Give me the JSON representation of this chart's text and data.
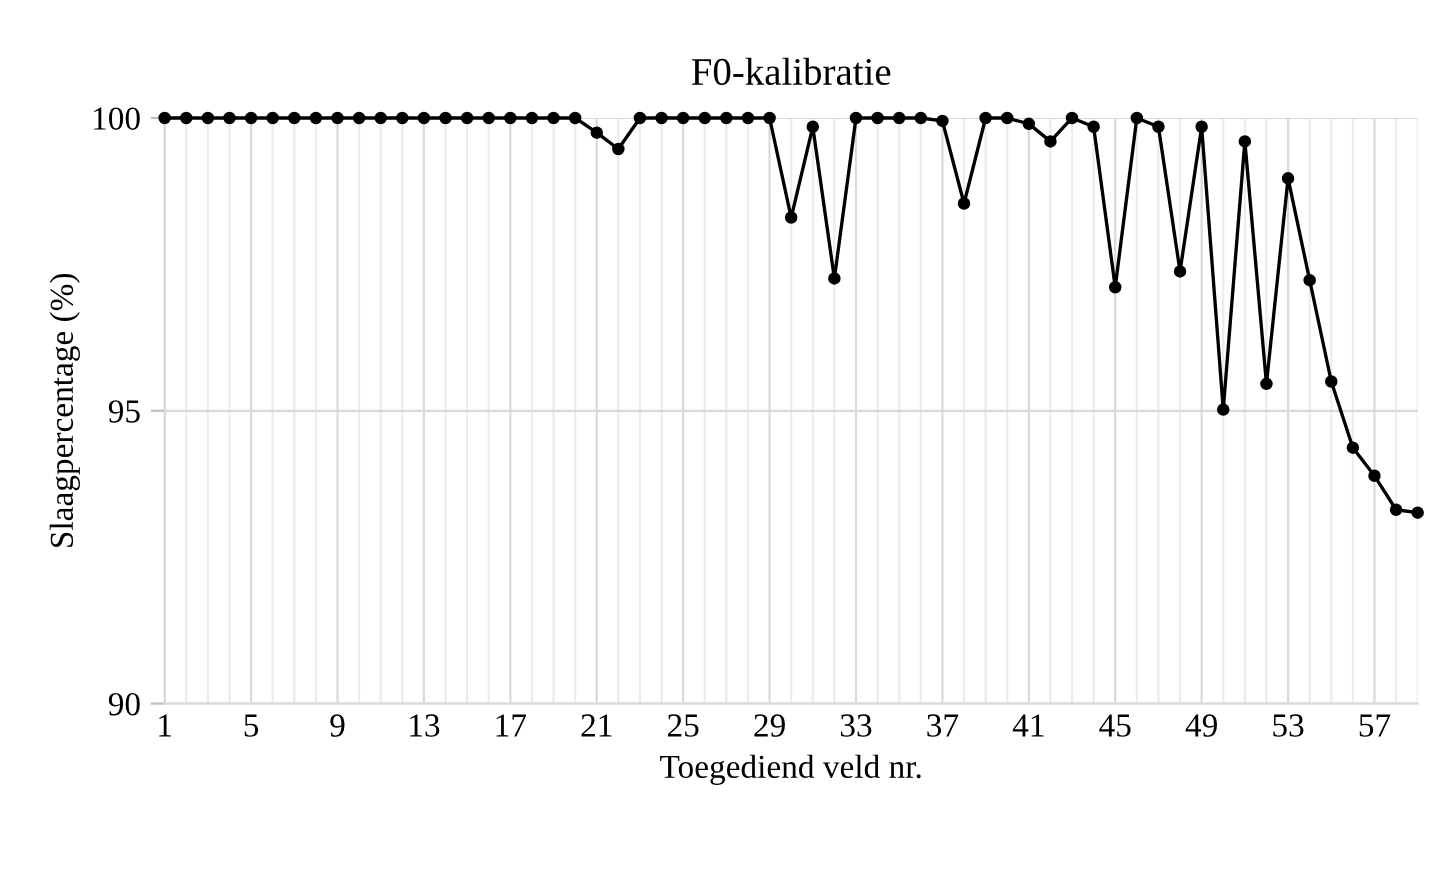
{
  "chart_data": {
    "type": "line",
    "title": "F0-kalibratie",
    "xlabel": "Toegediend veld nr.",
    "ylabel": "Slaagpercentage (%)",
    "categories": [
      "1",
      null,
      null,
      null,
      "5",
      null,
      null,
      null,
      "9",
      null,
      null,
      null,
      "13",
      null,
      null,
      null,
      "17",
      null,
      null,
      null,
      "21",
      null,
      null,
      null,
      "25",
      null,
      null,
      null,
      "29",
      null,
      null,
      null,
      "33",
      null,
      null,
      null,
      "37",
      null,
      null,
      null,
      "41",
      null,
      null,
      null,
      "45",
      null,
      null,
      null,
      "49",
      null,
      null,
      null,
      "53",
      null,
      null,
      null,
      "57",
      null,
      null
    ],
    "series": [
      {
        "color": "#000000",
        "values": [
          100,
          100,
          100,
          100,
          100,
          100,
          100,
          100,
          100,
          100,
          100,
          100,
          100,
          100,
          100,
          100,
          100,
          100,
          100,
          100,
          99.75,
          99.47,
          100,
          100,
          100,
          100,
          100,
          100,
          100,
          98.3,
          99.85,
          97.26,
          100,
          100,
          100,
          100,
          99.95,
          98.54,
          100,
          100,
          99.9,
          99.6,
          100,
          99.85,
          97.11,
          100,
          99.85,
          97.38,
          99.85,
          95.02,
          99.6,
          95.46,
          98.97,
          97.23,
          95.5,
          94.37,
          93.89,
          93.31,
          93.26
        ]
      }
    ],
    "ylim": [
      90,
      100
    ],
    "yticks": [
      90,
      95,
      100
    ],
    "grid": true,
    "marker": "circle",
    "line_style": "solid"
  }
}
